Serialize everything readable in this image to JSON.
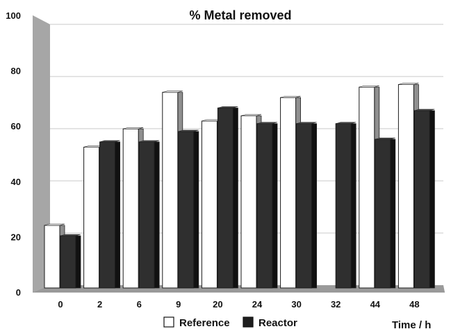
{
  "chart_data": {
    "type": "bar",
    "title": "% Metal removed",
    "xlabel": "Time / h",
    "ylabel": "",
    "ylim": [
      0,
      100
    ],
    "yticks": [
      0,
      20,
      40,
      60,
      80,
      100
    ],
    "categories": [
      "0",
      "2",
      "6",
      "9",
      "20",
      "24",
      "30",
      "32",
      "44",
      "48"
    ],
    "series": [
      {
        "name": "Reference",
        "values": [
          24,
          54,
          61,
          75,
          64,
          66,
          73,
          null,
          77,
          78
        ],
        "color": "#ffffff"
      },
      {
        "name": "Reactor",
        "values": [
          20,
          56,
          56,
          60,
          69,
          63,
          63,
          63,
          57,
          68
        ],
        "color": "#262626"
      }
    ],
    "grid": true,
    "legend_position": "bottom"
  }
}
